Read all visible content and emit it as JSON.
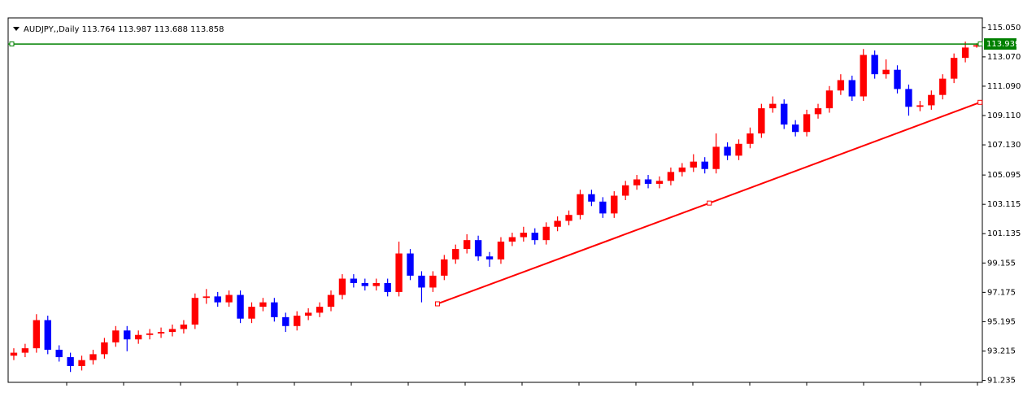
{
  "chart_data": {
    "type": "candlestick",
    "title": "AUDJPY,,Daily 113.764 113.987 113.688 113.858",
    "up_color": "#ff0000",
    "down_color": "#0000ff",
    "xlim": [
      0,
      86
    ],
    "ylim": [
      91.1,
      115.7
    ],
    "yticks": [
      {
        "value": 115.05,
        "label": "115.050"
      },
      {
        "value": 113.07,
        "label": "113.070"
      },
      {
        "value": 111.09,
        "label": "111.090"
      },
      {
        "value": 109.11,
        "label": "109.110"
      },
      {
        "value": 107.13,
        "label": "107.130"
      },
      105.095,
      103.115,
      101.135,
      99.155,
      97.175,
      95.195,
      93.215,
      91.235
    ],
    "open": [
      92.9,
      93.1,
      93.4,
      95.3,
      93.3,
      92.8,
      92.2,
      92.6,
      93.0,
      93.8,
      94.6,
      94.0,
      94.3,
      94.4,
      94.5,
      94.7,
      95.0,
      96.8,
      96.9,
      96.5,
      97.0,
      95.4,
      96.2,
      96.5,
      95.5,
      94.9,
      95.6,
      95.8,
      96.2,
      97.0,
      98.1,
      97.8,
      97.6,
      97.8,
      97.2,
      99.8,
      98.3,
      97.5,
      98.3,
      99.4,
      100.1,
      100.7,
      99.6,
      99.4,
      100.6,
      100.9,
      101.2,
      100.7,
      101.6,
      102.0,
      102.4,
      103.8,
      103.3,
      102.5,
      103.7,
      104.4,
      104.8,
      104.5,
      104.7,
      105.3,
      105.6,
      106.0,
      105.5,
      107.0,
      106.4,
      107.2,
      107.9,
      109.6,
      109.9,
      108.5,
      108.0,
      109.2,
      109.6,
      110.8,
      111.5,
      110.4,
      113.2,
      111.9,
      112.2,
      110.9,
      109.7,
      109.8,
      110.5,
      111.6,
      113.0,
      113.764
    ],
    "high": [
      93.4,
      93.7,
      95.7,
      95.6,
      93.6,
      93.1,
      92.9,
      93.3,
      94.1,
      94.9,
      94.9,
      94.6,
      94.7,
      94.8,
      95.0,
      95.3,
      97.1,
      97.4,
      97.2,
      97.3,
      97.3,
      96.5,
      96.8,
      96.8,
      95.8,
      95.9,
      96.1,
      96.5,
      97.3,
      98.4,
      98.4,
      98.1,
      98.1,
      98.1,
      100.6,
      100.1,
      98.6,
      98.6,
      99.7,
      100.4,
      101.1,
      101.0,
      99.9,
      100.9,
      101.2,
      101.6,
      101.5,
      101.9,
      102.3,
      102.7,
      104.1,
      104.1,
      103.6,
      104.0,
      104.7,
      105.1,
      105.1,
      105.0,
      105.6,
      105.9,
      106.5,
      106.3,
      107.9,
      107.3,
      107.5,
      108.3,
      109.9,
      110.4,
      110.2,
      108.8,
      109.5,
      109.9,
      111.1,
      111.9,
      111.8,
      113.6,
      113.5,
      112.9,
      112.5,
      111.2,
      110.1,
      110.8,
      111.9,
      113.3,
      114.1,
      113.987
    ],
    "low": [
      92.6,
      92.8,
      93.1,
      93.0,
      92.5,
      91.8,
      91.9,
      92.3,
      92.7,
      93.5,
      93.2,
      93.7,
      94.0,
      94.1,
      94.2,
      94.4,
      94.7,
      96.4,
      96.2,
      96.2,
      95.1,
      95.1,
      95.9,
      95.2,
      94.5,
      94.6,
      95.3,
      95.5,
      95.9,
      96.7,
      97.5,
      97.3,
      97.3,
      96.9,
      96.9,
      98.0,
      96.5,
      97.2,
      98.0,
      99.1,
      99.8,
      99.3,
      98.9,
      99.1,
      100.3,
      100.6,
      100.4,
      100.4,
      101.3,
      101.7,
      102.1,
      103.0,
      102.2,
      102.2,
      103.4,
      104.1,
      104.2,
      104.2,
      104.4,
      105.0,
      105.3,
      105.2,
      105.2,
      106.1,
      106.1,
      106.9,
      107.6,
      109.3,
      108.2,
      107.7,
      107.7,
      108.9,
      109.3,
      110.5,
      110.1,
      110.1,
      111.6,
      111.6,
      110.6,
      109.1,
      109.4,
      109.5,
      110.2,
      111.3,
      112.7,
      113.688
    ],
    "close": [
      93.1,
      93.4,
      95.3,
      93.3,
      92.8,
      92.2,
      92.6,
      93.0,
      93.8,
      94.6,
      94.0,
      94.3,
      94.4,
      94.5,
      94.7,
      95.0,
      96.8,
      96.9,
      96.5,
      97.0,
      95.4,
      96.2,
      96.5,
      95.5,
      94.9,
      95.6,
      95.8,
      96.2,
      97.0,
      98.1,
      97.8,
      97.6,
      97.8,
      97.2,
      99.8,
      98.3,
      97.5,
      98.3,
      99.4,
      100.1,
      100.7,
      99.6,
      99.4,
      100.6,
      100.9,
      101.2,
      100.7,
      101.6,
      102.0,
      102.4,
      103.8,
      103.3,
      102.5,
      103.7,
      104.4,
      104.8,
      104.5,
      104.7,
      105.3,
      105.6,
      106.0,
      105.5,
      107.0,
      106.4,
      107.2,
      107.9,
      109.6,
      109.9,
      108.5,
      108.0,
      109.2,
      109.6,
      110.8,
      111.5,
      110.4,
      113.2,
      111.9,
      112.2,
      110.9,
      109.7,
      109.8,
      110.5,
      111.6,
      113.0,
      113.7,
      113.858
    ],
    "level_line": {
      "value": 113.939,
      "color": "#008000"
    },
    "trendline": {
      "x": [
        37.9,
        61.9,
        85.8
      ],
      "y": [
        96.4,
        103.2,
        110.0
      ],
      "color": "#ff0000"
    }
  }
}
